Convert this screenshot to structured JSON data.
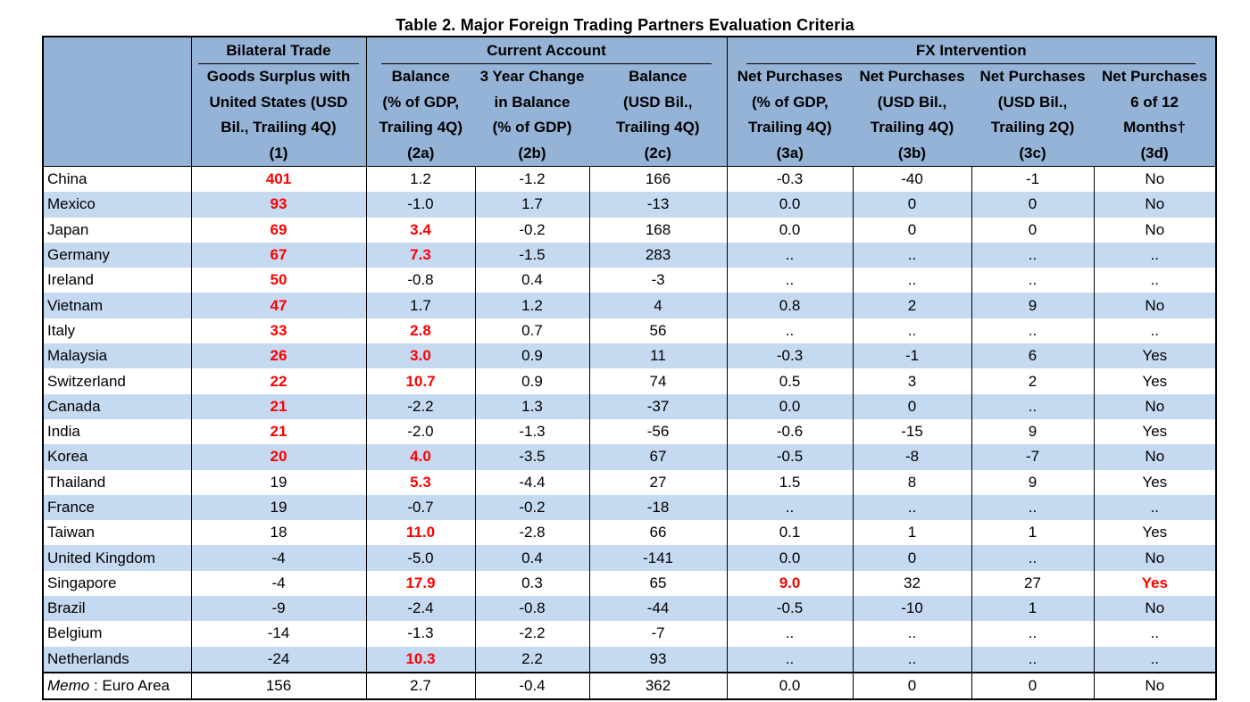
{
  "title": "Table 2. Major Foreign Trading Partners Evaluation Criteria",
  "groups": {
    "bilateral": "Bilateral Trade",
    "current": "Current Account",
    "fx": "FX Intervention"
  },
  "columns": [
    [
      "Goods Surplus with",
      "United States (USD",
      "Bil., Trailing 4Q)",
      "(1)"
    ],
    [
      "Balance",
      "(% of GDP,",
      "Trailing 4Q)",
      "(2a)"
    ],
    [
      "3 Year Change",
      "in Balance",
      "(% of GDP)",
      "(2b)"
    ],
    [
      "Balance",
      "(USD Bil.,",
      "Trailing 4Q)",
      "(2c)"
    ],
    [
      "Net Purchases",
      "(% of GDP,",
      "Trailing 4Q)",
      "(3a)"
    ],
    [
      "Net Purchases",
      "(USD Bil.,",
      "Trailing 4Q)",
      "(3b)"
    ],
    [
      "Net Purchases",
      "(USD Bil.,",
      "Trailing 2Q)",
      "(3c)"
    ],
    [
      "Net Purchases",
      "6 of 12",
      "Months†",
      "(3d)"
    ]
  ],
  "rows": [
    {
      "country": "China",
      "v": [
        "401",
        "1.2",
        "-1.2",
        "166",
        "-0.3",
        "-40",
        "-1",
        "No"
      ],
      "red": [
        0
      ]
    },
    {
      "country": "Mexico",
      "v": [
        "93",
        "-1.0",
        "1.7",
        "-13",
        "0.0",
        "0",
        "0",
        "No"
      ],
      "red": [
        0
      ]
    },
    {
      "country": "Japan",
      "v": [
        "69",
        "3.4",
        "-0.2",
        "168",
        "0.0",
        "0",
        "0",
        "No"
      ],
      "red": [
        0,
        1
      ]
    },
    {
      "country": "Germany",
      "v": [
        "67",
        "7.3",
        "-1.5",
        "283",
        "..",
        "..",
        "..",
        ".."
      ],
      "red": [
        0,
        1
      ]
    },
    {
      "country": "Ireland",
      "v": [
        "50",
        "-0.8",
        "0.4",
        "-3",
        "..",
        "..",
        "..",
        ".."
      ],
      "red": [
        0
      ]
    },
    {
      "country": "Vietnam",
      "v": [
        "47",
        "1.7",
        "1.2",
        "4",
        "0.8",
        "2",
        "9",
        "No"
      ],
      "red": [
        0
      ]
    },
    {
      "country": "Italy",
      "v": [
        "33",
        "2.8",
        "0.7",
        "56",
        "..",
        "..",
        "..",
        ".."
      ],
      "red": [
        0,
        1
      ]
    },
    {
      "country": "Malaysia",
      "v": [
        "26",
        "3.0",
        "0.9",
        "11",
        "-0.3",
        "-1",
        "6",
        "Yes"
      ],
      "red": [
        0,
        1
      ]
    },
    {
      "country": "Switzerland",
      "v": [
        "22",
        "10.7",
        "0.9",
        "74",
        "0.5",
        "3",
        "2",
        "Yes"
      ],
      "red": [
        0,
        1
      ]
    },
    {
      "country": "Canada",
      "v": [
        "21",
        "-2.2",
        "1.3",
        "-37",
        "0.0",
        "0",
        "..",
        "No"
      ],
      "red": [
        0
      ]
    },
    {
      "country": "India",
      "v": [
        "21",
        "-2.0",
        "-1.3",
        "-56",
        "-0.6",
        "-15",
        "9",
        "Yes"
      ],
      "red": [
        0
      ]
    },
    {
      "country": "Korea",
      "v": [
        "20",
        "4.0",
        "-3.5",
        "67",
        "-0.5",
        "-8",
        "-7",
        "No"
      ],
      "red": [
        0,
        1
      ]
    },
    {
      "country": "Thailand",
      "v": [
        "19",
        "5.3",
        "-4.4",
        "27",
        "1.5",
        "8",
        "9",
        "Yes"
      ],
      "red": [
        1
      ]
    },
    {
      "country": "France",
      "v": [
        "19",
        "-0.7",
        "-0.2",
        "-18",
        "..",
        "..",
        "..",
        ".."
      ],
      "red": []
    },
    {
      "country": "Taiwan",
      "v": [
        "18",
        "11.0",
        "-2.8",
        "66",
        "0.1",
        "1",
        "1",
        "Yes"
      ],
      "red": [
        1
      ]
    },
    {
      "country": "United Kingdom",
      "v": [
        "-4",
        "-5.0",
        "0.4",
        "-141",
        "0.0",
        "0",
        "..",
        "No"
      ],
      "red": []
    },
    {
      "country": "Singapore",
      "v": [
        "-4",
        "17.9",
        "0.3",
        "65",
        "9.0",
        "32",
        "27",
        "Yes"
      ],
      "red": [
        1,
        4,
        7
      ]
    },
    {
      "country": "Brazil",
      "v": [
        "-9",
        "-2.4",
        "-0.8",
        "-44",
        "-0.5",
        "-10",
        "1",
        "No"
      ],
      "red": []
    },
    {
      "country": "Belgium",
      "v": [
        "-14",
        "-1.3",
        "-2.2",
        "-7",
        "..",
        "..",
        "..",
        ".."
      ],
      "red": []
    },
    {
      "country": "Netherlands",
      "v": [
        "-24",
        "10.3",
        "2.2",
        "93",
        "..",
        "..",
        "..",
        ".."
      ],
      "red": [
        1
      ]
    }
  ],
  "memo": {
    "label_italic": "Memo",
    "label_rest": " : Euro Area",
    "v": [
      "156",
      "2.7",
      "-0.4",
      "362",
      "0.0",
      "0",
      "0",
      "No"
    ]
  }
}
